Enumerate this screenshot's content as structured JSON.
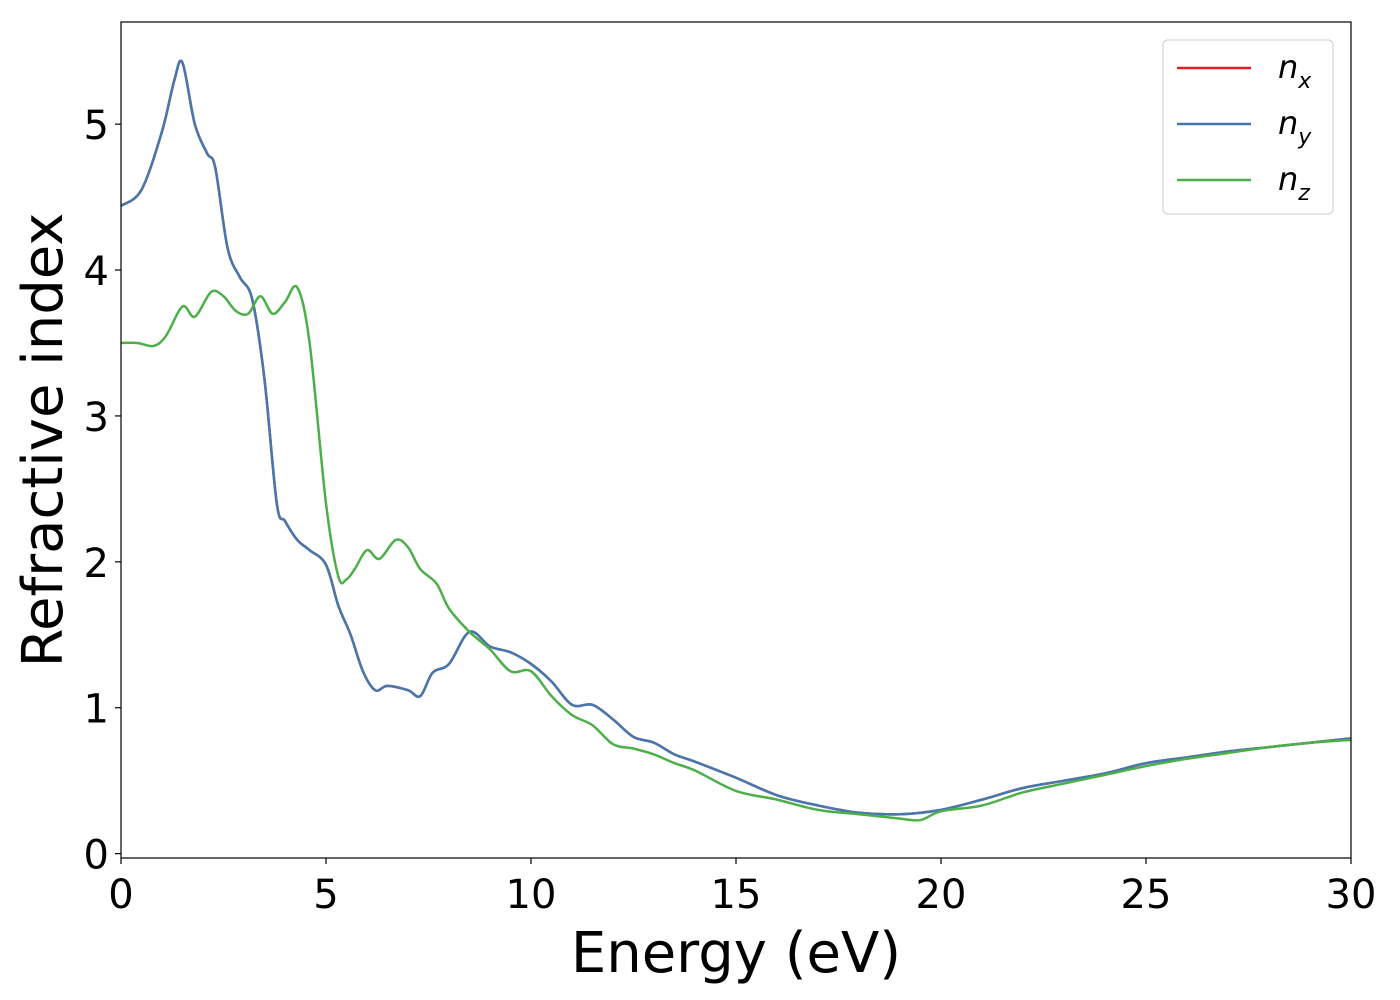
{
  "chart_data": {
    "type": "line",
    "xlabel": "Energy (eV)",
    "ylabel": "Refractive index",
    "xlim": [
      0,
      30
    ],
    "ylim": [
      -0.03,
      5.7
    ],
    "x_ticks": [
      0,
      5,
      10,
      15,
      20,
      25,
      30
    ],
    "y_ticks": [
      0,
      1,
      2,
      3,
      4,
      5
    ],
    "grid": false,
    "legend_position": "top-right",
    "series": [
      {
        "name": "n_x",
        "name_base": "n",
        "name_sub": "x",
        "color": "#e41a1c",
        "x": [
          0,
          0.5,
          1.0,
          1.3,
          1.5,
          1.8,
          2.1,
          2.3,
          2.6,
          2.9,
          3.2,
          3.5,
          3.8,
          4.0,
          4.3,
          4.6,
          5.0,
          5.3,
          5.6,
          5.9,
          6.2,
          6.5,
          7.0,
          7.3,
          7.6,
          8.0,
          8.5,
          9.0,
          9.5,
          10.0,
          10.5,
          11.0,
          11.5,
          12.0,
          12.5,
          13.0,
          13.5,
          14.0,
          15.0,
          16.0,
          17.0,
          18.0,
          19.0,
          20.0,
          21.0,
          22.0,
          23.0,
          24.0,
          25.0,
          26.0,
          27.0,
          28.0,
          29.0,
          30.0
        ],
        "y": [
          4.44,
          4.55,
          4.95,
          5.3,
          5.42,
          5.0,
          4.8,
          4.7,
          4.15,
          3.95,
          3.8,
          3.25,
          2.4,
          2.28,
          2.15,
          2.08,
          1.98,
          1.7,
          1.5,
          1.25,
          1.12,
          1.15,
          1.12,
          1.08,
          1.24,
          1.3,
          1.52,
          1.42,
          1.38,
          1.3,
          1.18,
          1.02,
          1.02,
          0.92,
          0.8,
          0.76,
          0.68,
          0.63,
          0.52,
          0.4,
          0.33,
          0.28,
          0.27,
          0.3,
          0.37,
          0.45,
          0.5,
          0.55,
          0.62,
          0.66,
          0.7,
          0.73,
          0.76,
          0.79
        ]
      },
      {
        "name": "n_y",
        "name_base": "n",
        "name_sub": "y",
        "color": "#4478b0",
        "x": [
          0,
          0.5,
          1.0,
          1.3,
          1.5,
          1.8,
          2.1,
          2.3,
          2.6,
          2.9,
          3.2,
          3.5,
          3.8,
          4.0,
          4.3,
          4.6,
          5.0,
          5.3,
          5.6,
          5.9,
          6.2,
          6.5,
          7.0,
          7.3,
          7.6,
          8.0,
          8.5,
          9.0,
          9.5,
          10.0,
          10.5,
          11.0,
          11.5,
          12.0,
          12.5,
          13.0,
          13.5,
          14.0,
          15.0,
          16.0,
          17.0,
          18.0,
          19.0,
          20.0,
          21.0,
          22.0,
          23.0,
          24.0,
          25.0,
          26.0,
          27.0,
          28.0,
          29.0,
          30.0
        ],
        "y": [
          4.44,
          4.55,
          4.95,
          5.3,
          5.42,
          5.0,
          4.8,
          4.7,
          4.15,
          3.95,
          3.8,
          3.25,
          2.4,
          2.28,
          2.15,
          2.08,
          1.98,
          1.7,
          1.5,
          1.25,
          1.12,
          1.15,
          1.12,
          1.08,
          1.24,
          1.3,
          1.52,
          1.42,
          1.38,
          1.3,
          1.18,
          1.02,
          1.02,
          0.92,
          0.8,
          0.76,
          0.68,
          0.63,
          0.52,
          0.4,
          0.33,
          0.28,
          0.27,
          0.3,
          0.37,
          0.45,
          0.5,
          0.55,
          0.62,
          0.66,
          0.7,
          0.73,
          0.76,
          0.79
        ]
      },
      {
        "name": "n_z",
        "name_base": "n",
        "name_sub": "z",
        "color": "#4daf4a",
        "x": [
          0,
          0.4,
          0.8,
          1.1,
          1.5,
          1.8,
          2.2,
          2.5,
          2.8,
          3.1,
          3.4,
          3.7,
          4.0,
          4.3,
          4.6,
          5.0,
          5.3,
          5.5,
          5.7,
          6.0,
          6.3,
          6.7,
          7.0,
          7.3,
          7.7,
          8.0,
          8.5,
          9.0,
          9.5,
          10.0,
          10.5,
          11.0,
          11.5,
          12.0,
          12.5,
          13.0,
          13.5,
          14.0,
          15.0,
          16.0,
          17.0,
          18.0,
          19.0,
          19.5,
          20.0,
          21.0,
          22.0,
          23.0,
          24.0,
          25.0,
          26.0,
          27.0,
          28.0,
          29.0,
          30.0
        ],
        "y": [
          3.5,
          3.5,
          3.48,
          3.55,
          3.75,
          3.68,
          3.85,
          3.82,
          3.72,
          3.7,
          3.82,
          3.7,
          3.78,
          3.88,
          3.5,
          2.4,
          1.9,
          1.88,
          1.95,
          2.08,
          2.02,
          2.15,
          2.1,
          1.95,
          1.85,
          1.68,
          1.52,
          1.4,
          1.25,
          1.25,
          1.08,
          0.95,
          0.88,
          0.75,
          0.72,
          0.68,
          0.62,
          0.57,
          0.43,
          0.37,
          0.3,
          0.27,
          0.24,
          0.23,
          0.29,
          0.33,
          0.42,
          0.48,
          0.54,
          0.6,
          0.65,
          0.69,
          0.73,
          0.76,
          0.78
        ]
      }
    ]
  }
}
